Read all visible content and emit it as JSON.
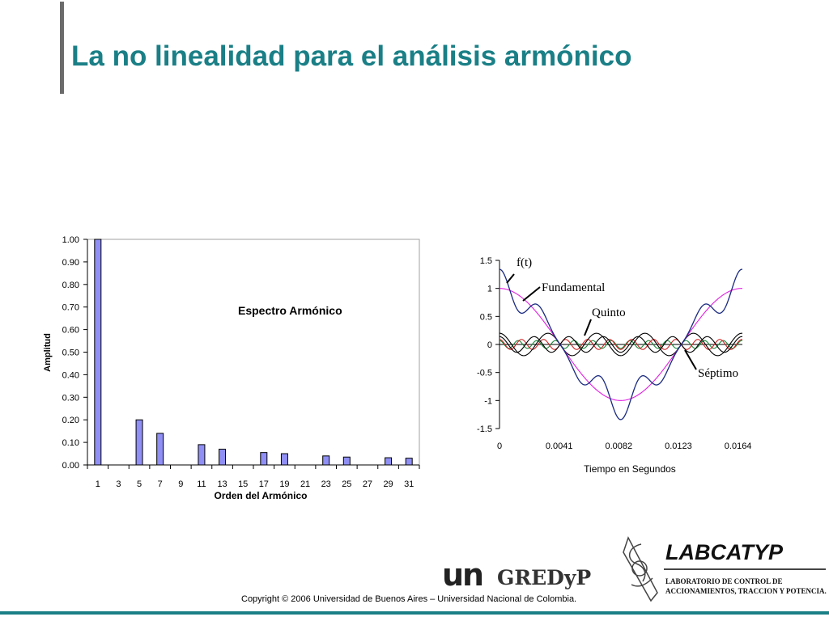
{
  "slide": {
    "title": "La no linealidad para el análisis armónico",
    "copyright": "Copyright © 2006 Universidad de Buenos Aires – Universidad Nacional de Colombia.",
    "logos": {
      "un": "un",
      "gredyp": "GREDyP",
      "lab_title": "LABCATYP",
      "lab_sub1": "LABORATORIO   DE   CONTROL   DE",
      "lab_sub2": "ACCIONAMIENTOS, TRACCION Y POTENCIA."
    }
  },
  "colors": {
    "title": "#1a7f86",
    "bar_fill": "#8f8ff5",
    "fundamental": "#e020e0",
    "ft": "#1a2a80",
    "harmonic_dark": "#000000",
    "harmonic_red": "#cc2222",
    "harmonic_green": "#1a8a3a"
  },
  "chart_data": [
    {
      "type": "bar",
      "title": "Espectro Armónico",
      "xlabel": "Orden del Armónico",
      "ylabel": "Amplitud",
      "ylim": [
        0,
        1.0
      ],
      "yticks": [
        "0.00",
        "0.10",
        "0.20",
        "0.30",
        "0.40",
        "0.50",
        "0.60",
        "0.70",
        "0.80",
        "0.90",
        "1.00"
      ],
      "xtick_labels": [
        "1",
        "3",
        "5",
        "7",
        "9",
        "11",
        "13",
        "15",
        "17",
        "19",
        "21",
        "23",
        "25",
        "27",
        "29",
        "31"
      ],
      "categories": [
        "1",
        "3",
        "5",
        "7",
        "9",
        "11",
        "13",
        "15",
        "17",
        "19",
        "21",
        "23",
        "25",
        "27",
        "29",
        "31"
      ],
      "values": [
        1.0,
        0,
        0.2,
        0.14,
        0,
        0.09,
        0.07,
        0,
        0.055,
        0.05,
        0,
        0.04,
        0.035,
        0,
        0.032,
        0.03
      ],
      "grid": false
    },
    {
      "type": "line",
      "xlabel": "Tiempo en Segundos",
      "ylabel": "",
      "xlim": [
        0,
        0.0167
      ],
      "ylim": [
        -1.5,
        1.5
      ],
      "xticks": [
        "0",
        "0.0041",
        "0.0082",
        "0.0123",
        "0.0164"
      ],
      "yticks": [
        "-1.5",
        "-1",
        "-0.5",
        "0",
        "0.5",
        "1",
        "1.5"
      ],
      "fundamental_frequency_hz": 60,
      "grid": false,
      "series": [
        {
          "name": "f(t)",
          "harmonics": [
            [
              1,
              1.0
            ],
            [
              5,
              0.2
            ],
            [
              7,
              0.14
            ]
          ]
        },
        {
          "name": "Fundamental",
          "harmonics": [
            [
              1,
              1.0
            ]
          ]
        },
        {
          "name": "Quinto",
          "harmonics": [
            [
              5,
              0.2
            ]
          ]
        },
        {
          "name": "Séptimo",
          "harmonics": [
            [
              7,
              0.14
            ]
          ]
        },
        {
          "name": "",
          "harmonics": [
            [
              11,
              0.09
            ]
          ]
        },
        {
          "name": "",
          "harmonics": [
            [
              13,
              0.07
            ]
          ]
        }
      ]
    }
  ]
}
